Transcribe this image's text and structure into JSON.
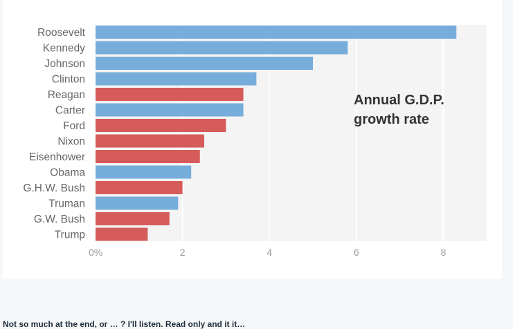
{
  "chart_data": {
    "type": "bar",
    "orientation": "horizontal",
    "title": "Annual G.D.P. growth rate",
    "annotation_lines": [
      "Annual G.D.P.",
      "growth rate"
    ],
    "xlabel": "",
    "ylabel": "",
    "xlim": [
      0,
      9
    ],
    "x_ticks": [
      0,
      2,
      4,
      6,
      8
    ],
    "x_tick_labels": [
      "0%",
      "2",
      "4",
      "6",
      "8"
    ],
    "grid": true,
    "legend": "none",
    "colors": {
      "democrat": "#76addb",
      "republican": "#d55c5b"
    },
    "categories": [
      "Roosevelt",
      "Kennedy",
      "Johnson",
      "Clinton",
      "Reagan",
      "Carter",
      "Ford",
      "Nixon",
      "Eisenhower",
      "Obama",
      "G.H.W. Bush",
      "Truman",
      "G.W. Bush",
      "Trump"
    ],
    "values": [
      8.3,
      5.8,
      5.0,
      3.7,
      3.4,
      3.4,
      3.0,
      2.5,
      2.4,
      2.2,
      2.0,
      1.9,
      1.7,
      1.2
    ],
    "party": [
      "democrat",
      "democrat",
      "democrat",
      "democrat",
      "republican",
      "democrat",
      "republican",
      "republican",
      "republican",
      "democrat",
      "republican",
      "democrat",
      "republican",
      "republican"
    ]
  },
  "footer": {
    "text": "Not so much at the end, or … ? I'll listen. Read only and it it…"
  }
}
